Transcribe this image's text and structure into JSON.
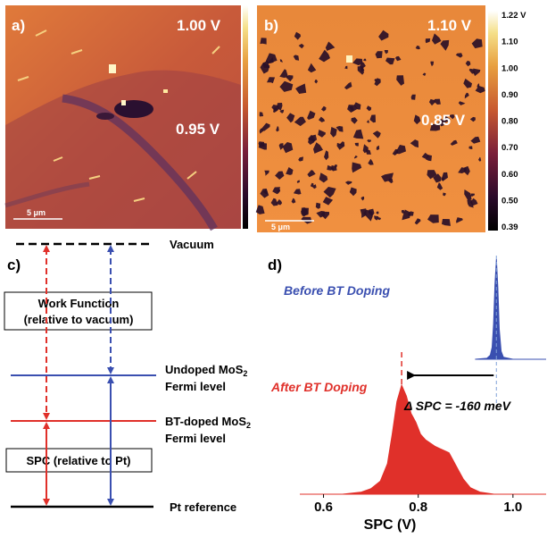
{
  "panel_a": {
    "label": "a)",
    "voltage_top": "1.00 V",
    "voltage_mid": "0.95 V",
    "scale_bar": "5 μm"
  },
  "panel_b": {
    "label": "b)",
    "voltage_top": "1.10 V",
    "voltage_mid": "0.85 V",
    "scale_bar": "5 μm"
  },
  "colorbar_b": {
    "ticks": [
      "1.22 V",
      "1.10",
      "1.00",
      "0.90",
      "0.80",
      "0.70",
      "0.60",
      "0.50",
      "0.39"
    ]
  },
  "panel_c": {
    "label": "c)",
    "vacuum_label": "Vacuum",
    "work_function_line1": "Work Function",
    "work_function_line2": "(relative to vacuum)",
    "undoped_line1": "Undoped MoS",
    "undoped_sub": "2",
    "undoped_line2": "Fermi level",
    "btdoped_line1": "BT-doped MoS",
    "btdoped_sub": "2",
    "btdoped_line2": "Fermi level",
    "spc_box": "SPC (relative to Pt)",
    "pt_label": "Pt reference",
    "colors": {
      "red": "#e0302a",
      "blue": "#3a4fb0"
    }
  },
  "panel_d": {
    "label": "d)",
    "before_label": "Before BT Doping",
    "after_label": "After BT Doping",
    "delta_label": "Δ SPC = -160 meV",
    "colors": {
      "before": "#3a4fb0",
      "after": "#e0302a"
    }
  },
  "chart_data": {
    "type": "area",
    "xlabel": "SPC (V)",
    "ylabel": "",
    "xlim": [
      0.55,
      1.07
    ],
    "ticks": [
      "0.6",
      "0.8",
      "1.0"
    ],
    "tick_values": [
      0.6,
      0.8,
      1.0
    ],
    "series": [
      {
        "name": "Before BT Doping",
        "color": "#3a4fb0",
        "peak": 0.965,
        "x": [
          0.92,
          0.945,
          0.952,
          0.956,
          0.959,
          0.962,
          0.965,
          0.968,
          0.971,
          0.975,
          0.98,
          1.0,
          1.07
        ],
        "y": [
          0.0,
          0.01,
          0.04,
          0.12,
          0.35,
          0.75,
          1.0,
          0.72,
          0.3,
          0.08,
          0.02,
          0.0,
          0.0
        ]
      },
      {
        "name": "After BT Doping",
        "color": "#e0302a",
        "peak": 0.765,
        "x": [
          0.55,
          0.64,
          0.68,
          0.7,
          0.72,
          0.735,
          0.745,
          0.755,
          0.765,
          0.775,
          0.785,
          0.795,
          0.805,
          0.815,
          0.825,
          0.835,
          0.845,
          0.855,
          0.865,
          0.875,
          0.885,
          0.895,
          0.91,
          0.93,
          0.96,
          1.07
        ],
        "y": [
          0.0,
          0.0,
          0.02,
          0.05,
          0.12,
          0.28,
          0.55,
          0.85,
          1.0,
          0.9,
          0.74,
          0.66,
          0.55,
          0.5,
          0.47,
          0.44,
          0.42,
          0.4,
          0.38,
          0.3,
          0.22,
          0.14,
          0.06,
          0.02,
          0.0,
          0.0
        ]
      }
    ]
  }
}
